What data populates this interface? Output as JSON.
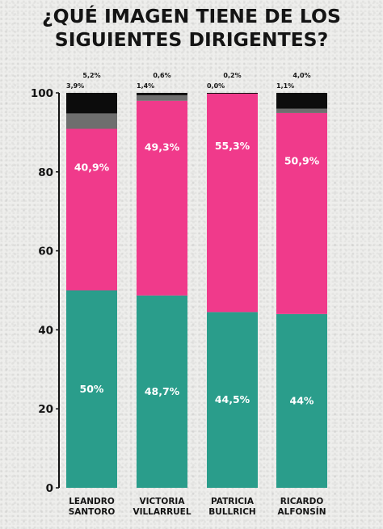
{
  "title_lines": [
    "¿QUÉ IMAGEN TIENE DE LOS",
    "SIGUIENTES DIRIGENTES?"
  ],
  "colors": {
    "positive": "#2a9d8b",
    "negative": "#f03a8b",
    "no_sabe": "#6e6e6e",
    "no_conoce": "#0c0c0c"
  },
  "chart_data": {
    "type": "bar",
    "stacked": true,
    "title": "¿QUÉ IMAGEN TIENE DE LOS SIGUIENTES DIRIGENTES?",
    "categories": [
      [
        "LEANDRO",
        "SANTORO"
      ],
      [
        "VICTORIA",
        "VILLARRUEL"
      ],
      [
        "PATRICIA",
        "BULLRICH"
      ],
      [
        "RICARDO",
        "ALFONSÍN"
      ]
    ],
    "series": [
      {
        "values": [
          50,
          48.7,
          44.5,
          44
        ],
        "labels": [
          "50%",
          "48,7%",
          "44,5%",
          "44%"
        ]
      },
      {
        "values": [
          40.9,
          49.3,
          55.3,
          50.9
        ],
        "labels": [
          "40,9%",
          "49,3%",
          "55,3%",
          "50,9%"
        ]
      },
      {
        "values": [
          3.9,
          1.4,
          0.0,
          1.1
        ],
        "labels": [
          "3,9%",
          "1,4%",
          "0,0%",
          "1,1%"
        ]
      },
      {
        "values": [
          5.2,
          0.6,
          0.2,
          4.0
        ],
        "labels": [
          "5,2%",
          "0,6%",
          "0,2%",
          "4,0%"
        ]
      }
    ],
    "yticks": [
      0,
      20,
      40,
      60,
      80,
      100
    ],
    "ylim": [
      0,
      100
    ],
    "grid": false,
    "xlabel": "",
    "ylabel": ""
  }
}
